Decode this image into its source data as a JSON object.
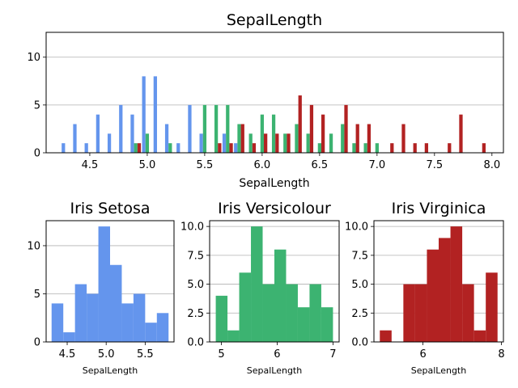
{
  "chart_data": [
    {
      "type": "bar",
      "title": "SepalLength",
      "xlabel": "SepalLength",
      "ylabel": "",
      "xlim": [
        4.12,
        8.1
      ],
      "ylim": [
        0,
        12.6
      ],
      "xticks": [
        4.5,
        5.0,
        5.5,
        6.0,
        6.5,
        7.0,
        7.5,
        8.0
      ],
      "xtick_labels": [
        "4.5",
        "5.0",
        "5.5",
        "6.0",
        "6.5",
        "7.0",
        "7.5",
        "8.0"
      ],
      "yticks": [
        0,
        5,
        10
      ],
      "ytick_labels": [
        "0",
        "5",
        "10"
      ],
      "grid": "y",
      "bar_width": 0.03,
      "series": [
        {
          "color": "#6495ED",
          "x": [
            4.3,
            4.4,
            4.5,
            4.6,
            4.7,
            4.8,
            4.9,
            5.0,
            5.1,
            5.2,
            5.3,
            5.4,
            5.5,
            5.7,
            5.8
          ],
          "values": [
            1,
            3,
            1,
            4,
            2,
            5,
            4,
            8,
            8,
            3,
            1,
            5,
            2,
            2,
            1
          ]
        },
        {
          "color": "#3CB371",
          "x": [
            4.9,
            5.0,
            5.2,
            5.5,
            5.6,
            5.7,
            5.8,
            5.9,
            6.0,
            6.1,
            6.2,
            6.3,
            6.4,
            6.5,
            6.6,
            6.7,
            6.8,
            6.9,
            7.0
          ],
          "values": [
            1,
            2,
            1,
            5,
            5,
            5,
            3,
            2,
            4,
            4,
            2,
            3,
            2,
            1,
            2,
            3,
            1,
            1,
            1
          ]
        },
        {
          "color": "#B22222",
          "x": [
            4.9,
            5.6,
            5.7,
            5.8,
            5.9,
            6.0,
            6.1,
            6.2,
            6.3,
            6.4,
            6.5,
            6.7,
            6.8,
            6.9,
            7.1,
            7.2,
            7.3,
            7.4,
            7.6,
            7.7,
            7.9
          ],
          "values": [
            1,
            1,
            1,
            3,
            1,
            2,
            2,
            2,
            6,
            5,
            4,
            5,
            3,
            3,
            1,
            3,
            1,
            1,
            1,
            4,
            1
          ]
        }
      ]
    },
    {
      "type": "bar",
      "title": "Iris Setosa",
      "xlabel": "SepalLength",
      "ylabel": "",
      "xlim": [
        4.23,
        5.87
      ],
      "ylim": [
        0,
        12.6
      ],
      "xticks": [
        4.5,
        5.0,
        5.5
      ],
      "xtick_labels": [
        "4.5",
        "5.0",
        "5.5"
      ],
      "yticks": [
        0,
        5,
        10
      ],
      "ytick_labels": [
        "0",
        "5",
        "10"
      ],
      "grid": "y",
      "color": "#6495ED",
      "bin_edges": [
        4.3,
        4.45,
        4.6,
        4.75,
        4.9,
        5.05,
        5.2,
        5.35,
        5.5,
        5.65,
        5.8
      ],
      "values": [
        4,
        1,
        6,
        5,
        12,
        8,
        4,
        5,
        2,
        3
      ]
    },
    {
      "type": "bar",
      "title": "Iris Versicolour",
      "xlabel": "SepalLength",
      "ylabel": "",
      "xlim": [
        4.79,
        7.11
      ],
      "ylim": [
        0,
        10.5
      ],
      "xticks": [
        5,
        6,
        7
      ],
      "xtick_labels": [
        "5",
        "6",
        "7"
      ],
      "yticks": [
        0,
        2.5,
        5,
        7.5,
        10
      ],
      "ytick_labels": [
        "0.0",
        "2.5",
        "5.0",
        "7.5",
        "10.0"
      ],
      "grid": "y",
      "color": "#3CB371",
      "bin_edges": [
        4.9,
        5.11,
        5.32,
        5.53,
        5.74,
        5.95,
        6.16,
        6.37,
        6.58,
        6.79,
        7.0
      ],
      "values": [
        4,
        1,
        6,
        10,
        5,
        8,
        5,
        3,
        5,
        3
      ]
    },
    {
      "type": "bar",
      "title": "Iris Virginica",
      "xlabel": "SepalLength",
      "ylabel": "",
      "xlim": [
        4.75,
        8.05
      ],
      "ylim": [
        0,
        10.5
      ],
      "xticks": [
        6,
        8
      ],
      "xtick_labels": [
        "6",
        "8"
      ],
      "yticks": [
        0,
        2.5,
        5,
        7.5,
        10
      ],
      "ytick_labels": [
        "0.0",
        "2.5",
        "5.0",
        "7.5",
        "10.0"
      ],
      "grid": "y",
      "color": "#B22222",
      "bin_edges": [
        4.9,
        5.2,
        5.5,
        5.8,
        6.1,
        6.4,
        6.7,
        7.0,
        7.3,
        7.6,
        7.9
      ],
      "values": [
        1,
        0,
        5,
        5,
        8,
        9,
        10,
        5,
        1,
        6
      ]
    }
  ]
}
